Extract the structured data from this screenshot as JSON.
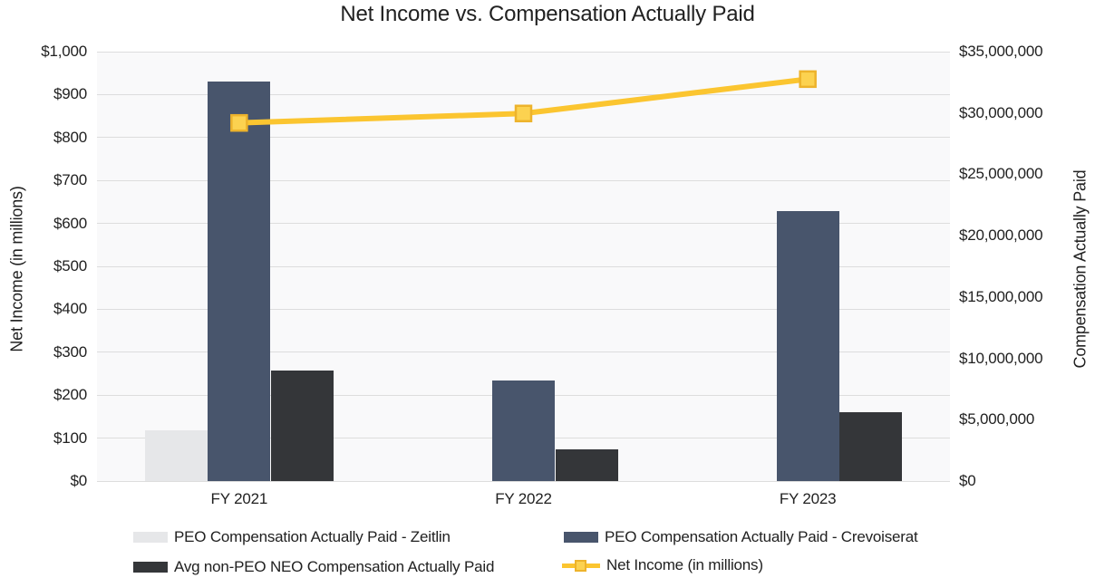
{
  "title": "Net Income vs. Compensation Actually Paid",
  "chart_data": {
    "type": "combo-bar-line",
    "categories": [
      "FY 2021",
      "FY 2022",
      "FY 2023"
    ],
    "bar_series": [
      {
        "name": "PEO Compensation Actually Paid - Zeitlin",
        "axis": "right",
        "color": "#E6E7E9",
        "values": [
          4100000,
          null,
          null
        ]
      },
      {
        "name": "PEO Compensation Actually Paid - Crevoiserat",
        "axis": "right",
        "color": "#48556C",
        "values": [
          32600000,
          8200000,
          22000000
        ]
      },
      {
        "name": "Avg non-PEO NEO Compensation Actually Paid",
        "axis": "right",
        "color": "#343639",
        "values": [
          9000000,
          2600000,
          5600000
        ]
      }
    ],
    "line_series": [
      {
        "name": "Net Income (in millions)",
        "axis": "left",
        "color": "#FBC530",
        "marker": "square",
        "marker_fill": "#FCD250",
        "marker_border": "#EDB32C",
        "values": [
          834,
          856,
          936
        ]
      }
    ],
    "left_axis": {
      "label": "Net Income (in millions)",
      "range": [
        0,
        1000
      ],
      "tick_step": 100,
      "tick_labels": [
        "$1,000",
        "$900",
        "$800",
        "$700",
        "$600",
        "$500",
        "$400",
        "$300",
        "$200",
        "$100",
        "$0"
      ]
    },
    "right_axis": {
      "label": "Compensation Actually Paid",
      "range": [
        0,
        35000000
      ],
      "tick_step": 5000000,
      "tick_labels": [
        "$35,000,000",
        "$30,000,000",
        "$25,000,000",
        "$20,000,000",
        "$15,000,000",
        "$10,000,000",
        "$5,000,000",
        "$0"
      ]
    },
    "grid": "horizontal",
    "legend_position": "bottom"
  },
  "legend": {
    "items": [
      {
        "label": "PEO Compensation Actually Paid - Zeitlin",
        "swatch": "bar",
        "color": "#E6E7E9"
      },
      {
        "label": "PEO Compensation Actually Paid - Crevoiserat",
        "swatch": "bar",
        "color": "#48556C"
      },
      {
        "label": "Avg non-PEO NEO Compensation Actually Paid",
        "swatch": "bar",
        "color": "#343639"
      },
      {
        "label": "Net Income (in millions)",
        "swatch": "line-marker",
        "color": "#FBC530"
      }
    ]
  },
  "colors": {
    "background": "#FFFFFF",
    "plot_background": "#F9F9FA",
    "gridline": "#DDDDDD",
    "text": "#212121"
  }
}
